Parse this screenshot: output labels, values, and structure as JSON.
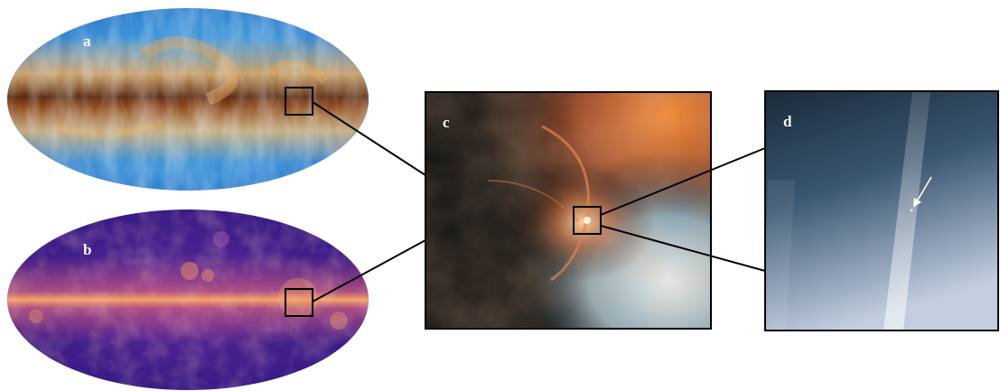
{
  "panels": {
    "a": {
      "label": "a",
      "desc_colors": {
        "plane": "#b5651d",
        "bg": "#2f8fd8"
      }
    },
    "b": {
      "label": "b",
      "desc_colors": {
        "plane": "#f2a05a",
        "bg": "#3a1a80"
      }
    },
    "c": {
      "label": "c"
    },
    "d": {
      "label": "d"
    }
  },
  "colors": {
    "connector": "#000000",
    "zoom_box": "#000000",
    "arrow": "#ffffff",
    "label": "#ffffff"
  }
}
